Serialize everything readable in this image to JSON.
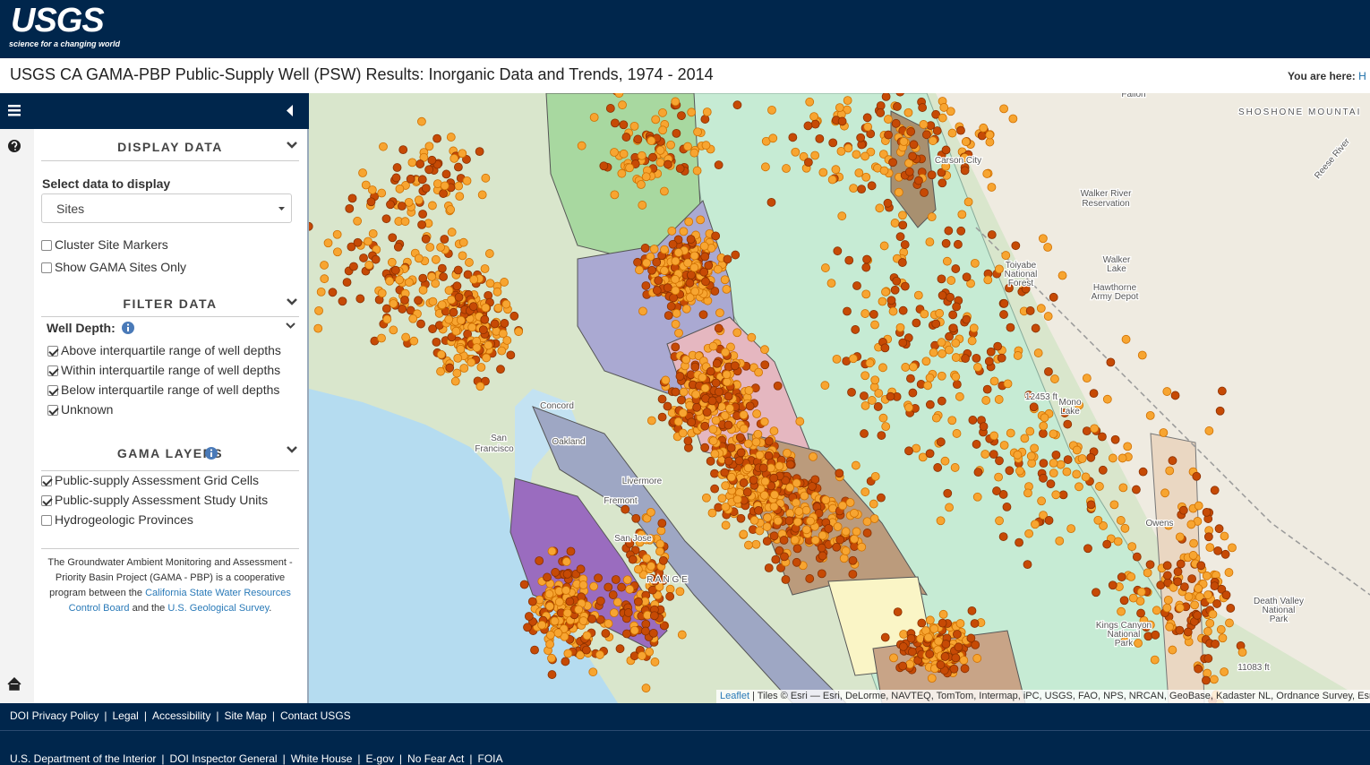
{
  "header": {
    "logo": "USGS",
    "tagline": "science for a changing world"
  },
  "title": "USGS CA GAMA-PBP Public-Supply Well (PSW) Results: Inorganic Data and Trends, 1974 - 2014",
  "breadcrumb": {
    "label": "You are here:",
    "link": "H"
  },
  "sidebar": {
    "display_data": {
      "heading": "DISPLAY DATA",
      "select_label": "Select data to display",
      "selected": "Sites",
      "options": [
        {
          "label": "Cluster Site Markers",
          "checked": false
        },
        {
          "label": "Show GAMA Sites Only",
          "checked": false
        }
      ]
    },
    "filter_data": {
      "heading": "FILTER DATA",
      "well_depth": "Well Depth:",
      "options": [
        {
          "label": "Above interquartile range of well depths",
          "checked": true
        },
        {
          "label": "Within interquartile range of well depths",
          "checked": true
        },
        {
          "label": "Below interquartile range of well depths",
          "checked": true
        },
        {
          "label": "Unknown",
          "checked": true
        }
      ]
    },
    "gama_layers": {
      "heading": "GAMA LAYERS",
      "options": [
        {
          "label": "Public-supply Assessment Grid Cells",
          "checked": true
        },
        {
          "label": "Public-supply Assessment Study Units",
          "checked": true
        },
        {
          "label": "Hydrogeologic Provinces",
          "checked": false
        }
      ]
    },
    "info": {
      "text1": "The Groundwater Ambient Monitoring and Assessment - Priority Basin Project (GAMA - PBP) is a cooperative program between the ",
      "link1": "California State Water Resources Control Board",
      "text2": " and the ",
      "link2": "U.S. Geological Survey",
      "text3": "."
    }
  },
  "map": {
    "labels": [
      "Fallon",
      "SHOSHONE MOUNTAI",
      "Carson City",
      "Walker River",
      "Reservation",
      "Toiyabe",
      "National",
      "Forest",
      "Walker",
      "Lake",
      "Hawthorne",
      "Army Depot",
      "Mono",
      "Lake",
      "Death Valley",
      "National",
      "Park",
      "Kings Canyon",
      "National",
      "Park",
      "Concord",
      "San",
      "Francisco",
      "Oakland",
      "Fremont",
      "San Jose",
      "R A N G E",
      "Livermore",
      "12453 ft",
      "11083 ft",
      "Owens",
      "Reese River"
    ],
    "attribution": {
      "link": "Leaflet",
      "text": "| Tiles © Esri — Esri, DeLorme, NAVTEQ, TomTom, Intermap, iPC, USGS, FAO, NPS, NRCAN, GeoBase, Kadaster NL, Ordnance Survey, Esri"
    }
  },
  "footer": {
    "separator": "|",
    "row1": [
      "DOI Privacy Policy",
      "Legal",
      "Accessibility",
      "Site Map",
      "Contact USGS"
    ],
    "row2": [
      "U.S. Department of the Interior",
      "DOI Inspector General",
      "White House",
      "E-gov",
      "No Fear Act",
      "FOIA"
    ]
  }
}
